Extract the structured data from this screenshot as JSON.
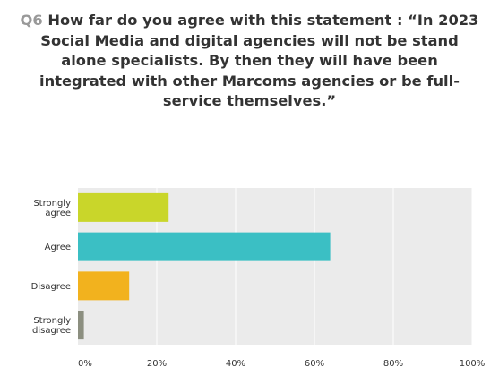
{
  "question": {
    "number": "Q6",
    "text": "How far do you agree with this statement : “In 2023 Social Media and digital agencies will not be stand alone specialists. By then they will have been integrated with other Marcoms agencies or be full-service themselves.”"
  },
  "chart_data": {
    "type": "bar",
    "orientation": "horizontal",
    "title": "Q6 How far do you agree with this statement : “In 2023 Social Media and digital agencies will not be stand alone specialists. By then they will have been integrated with other Marcoms agencies or be full-service themselves.”",
    "categories": [
      [
        "Strongly",
        "agree"
      ],
      [
        "Agree"
      ],
      [
        "Disagree"
      ],
      [
        "Strongly",
        "disagree"
      ]
    ],
    "values": [
      23,
      64,
      13,
      1.5
    ],
    "colors": [
      "#c9d62a",
      "#3bbfc4",
      "#f2b21e",
      "#8c8f80"
    ],
    "xlim": [
      0,
      100
    ],
    "xticks": [
      "0%",
      "20%",
      "40%",
      "60%",
      "80%",
      "100%"
    ],
    "xtick_values": [
      0,
      20,
      40,
      60,
      80,
      100
    ],
    "grid": true,
    "xlabel": "",
    "ylabel": ""
  }
}
